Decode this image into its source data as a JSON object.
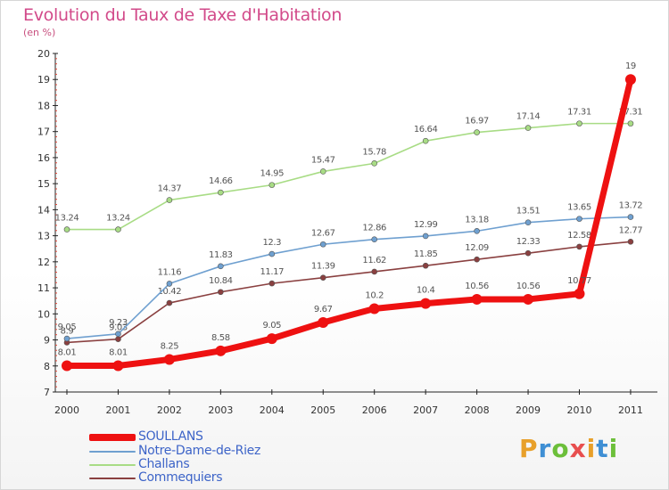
{
  "title": "Evolution du Taux de Taxe d'Habitation",
  "subtitle": "(en %)",
  "brand": {
    "text": "Proxiti",
    "letter_colors": [
      "#e8a02a",
      "#3f8fd4",
      "#6cbf3a",
      "#e84f4f",
      "#e8a02a",
      "#3f8fd4",
      "#6cbf3a"
    ]
  },
  "chart_data": {
    "type": "line",
    "x": [
      "2000",
      "2001",
      "2002",
      "2003",
      "2004",
      "2005",
      "2006",
      "2007",
      "2008",
      "2009",
      "2010",
      "2011"
    ],
    "ylim": [
      7,
      20
    ],
    "yticks": [
      "7",
      "8",
      "9",
      "10",
      "11",
      "12",
      "13",
      "14",
      "15",
      "16",
      "17",
      "18",
      "19",
      "20"
    ],
    "grid": false,
    "legend_position": "bottom-left",
    "series": [
      {
        "name": "SOULLANS",
        "color": "#ee1111",
        "values": [
          8.01,
          8.01,
          8.25,
          8.58,
          9.05,
          9.67,
          10.2,
          10.4,
          10.56,
          10.56,
          10.77,
          19
        ],
        "labels": [
          "8.01",
          "8.01",
          "8.25",
          "8.58",
          "9.05",
          "9.67",
          "10.2",
          "10.4",
          "10.56",
          "10.56",
          "10.77",
          "19"
        ]
      },
      {
        "name": "Notre-Dame-de-Riez",
        "color": "#6fa0d0",
        "values": [
          9.05,
          9.23,
          11.16,
          11.83,
          12.3,
          12.67,
          12.86,
          12.99,
          13.18,
          13.51,
          13.65,
          13.72
        ],
        "labels": [
          "9.05",
          "9.23",
          "11.16",
          "11.83",
          "12.3",
          "12.67",
          "12.86",
          "12.99",
          "13.18",
          "13.51",
          "13.65",
          "13.72"
        ]
      },
      {
        "name": "Challans",
        "color": "#a8dc85",
        "values": [
          13.24,
          13.24,
          14.37,
          14.66,
          14.95,
          15.47,
          15.78,
          16.64,
          16.97,
          17.14,
          17.31,
          17.31
        ],
        "labels": [
          "13.24",
          "13.24",
          "14.37",
          "14.66",
          "14.95",
          "15.47",
          "15.78",
          "16.64",
          "16.97",
          "17.14",
          "17.31",
          "17.31"
        ]
      },
      {
        "name": "Commequiers",
        "color": "#8a4040",
        "values": [
          8.9,
          9.03,
          10.42,
          10.84,
          11.17,
          11.39,
          11.62,
          11.85,
          12.09,
          12.33,
          12.58,
          12.77
        ],
        "labels": [
          "8.9",
          "9.03",
          "10.42",
          "10.84",
          "11.17",
          "11.39",
          "11.62",
          "11.85",
          "12.09",
          "12.33",
          "12.58",
          "12.77"
        ]
      }
    ]
  }
}
